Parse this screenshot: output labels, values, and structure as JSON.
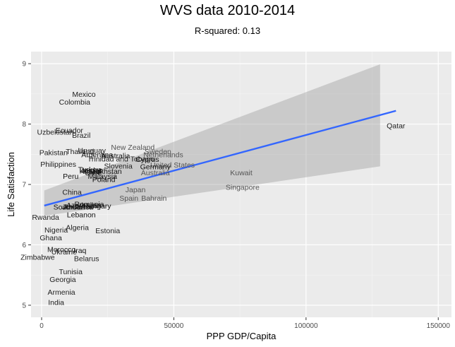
{
  "chart_data": {
    "type": "scatter",
    "title": "WVS data 2010-2014",
    "subtitle": "R-squared: 0.13",
    "xlabel": "PPP GDP/Capita",
    "ylabel": "Life Satisfaction",
    "xlim": [
      -4000,
      155000
    ],
    "ylim": [
      4.8,
      9.2
    ],
    "x_ticks": [
      0,
      50000,
      100000,
      150000
    ],
    "x_tick_labels": [
      "0",
      "50000",
      "100000",
      "150000"
    ],
    "y_ticks": [
      5,
      6,
      7,
      8,
      9
    ],
    "y_tick_labels": [
      "5",
      "6",
      "7",
      "8",
      "9"
    ],
    "grid": true,
    "background": "#ebebeb",
    "label_color_by_density": true,
    "regression": {
      "x": [
        1000,
        134000
      ],
      "y": [
        6.65,
        8.22
      ],
      "color": "#3366ff",
      "ci_band": {
        "x": [
          1000,
          128000
        ],
        "lower": [
          6.48,
          7.3
        ],
        "upper": [
          6.9,
          8.99
        ],
        "color": "#999999"
      }
    },
    "points": [
      {
        "label": "Mexico",
        "x": 16000,
        "y": 8.5
      },
      {
        "label": "Colombia",
        "x": 12500,
        "y": 8.37
      },
      {
        "label": "Ecuador",
        "x": 10500,
        "y": 7.9
      },
      {
        "label": "Uzbekistan",
        "x": 5200,
        "y": 7.87
      },
      {
        "label": "Brazil",
        "x": 15000,
        "y": 7.82
      },
      {
        "label": "Qatar",
        "x": 134000,
        "y": 7.98
      },
      {
        "label": "New Zealand",
        "x": 34500,
        "y": 7.62
      },
      {
        "label": "Sweden",
        "x": 44000,
        "y": 7.55
      },
      {
        "label": "Netherlands",
        "x": 46000,
        "y": 7.5
      },
      {
        "label": "Thailand",
        "x": 14500,
        "y": 7.55
      },
      {
        "label": "Uruguay",
        "x": 19000,
        "y": 7.57
      },
      {
        "label": "Pakistan",
        "x": 4500,
        "y": 7.53
      },
      {
        "label": "Argentina",
        "x": 21000,
        "y": 7.5
      },
      {
        "label": "Australia",
        "x": 28000,
        "y": 7.48
      },
      {
        "label": "Trinidad and Tobago",
        "x": 30000,
        "y": 7.43
      },
      {
        "label": "Cyprus",
        "x": 40000,
        "y": 7.42
      },
      {
        "label": "United States",
        "x": 49500,
        "y": 7.33
      },
      {
        "label": "Germany",
        "x": 43000,
        "y": 7.3
      },
      {
        "label": "Slovenia",
        "x": 29000,
        "y": 7.31
      },
      {
        "label": "Philippines",
        "x": 6300,
        "y": 7.34
      },
      {
        "label": "Turkey",
        "x": 18000,
        "y": 7.25
      },
      {
        "label": "Jordan",
        "x": 19000,
        "y": 7.24
      },
      {
        "label": "Kuwait",
        "x": 18500,
        "y": 7.23
      },
      {
        "label": "Kazakhstan",
        "x": 23000,
        "y": 7.22
      },
      {
        "label": "Chile",
        "x": 19500,
        "y": 7.2
      },
      {
        "label": "Australia",
        "x": 43000,
        "y": 7.2
      },
      {
        "label": "Kuwait",
        "x": 75500,
        "y": 7.2
      },
      {
        "label": "Peru",
        "x": 11000,
        "y": 7.14
      },
      {
        "label": "Malaysia",
        "x": 23000,
        "y": 7.14
      },
      {
        "label": "Poland",
        "x": 23500,
        "y": 7.09
      },
      {
        "label": "Singapore",
        "x": 76000,
        "y": 6.96
      },
      {
        "label": "China",
        "x": 11500,
        "y": 6.88
      },
      {
        "label": "Japan",
        "x": 35500,
        "y": 6.92
      },
      {
        "label": "Spain",
        "x": 33000,
        "y": 6.78
      },
      {
        "label": "Bahrain",
        "x": 42500,
        "y": 6.78
      },
      {
        "label": "Romania",
        "x": 18000,
        "y": 6.68
      },
      {
        "label": "Azerbaijan",
        "x": 16000,
        "y": 6.66
      },
      {
        "label": "Armenia",
        "x": 13500,
        "y": 6.64
      },
      {
        "label": "South Africa",
        "x": 12000,
        "y": 6.63
      },
      {
        "label": "Hungary",
        "x": 21000,
        "y": 6.65
      },
      {
        "label": "Jordan",
        "x": 12000,
        "y": 6.63
      },
      {
        "label": "Lebanon",
        "x": 15000,
        "y": 6.5
      },
      {
        "label": "Rwanda",
        "x": 1500,
        "y": 6.46
      },
      {
        "label": "Algeria",
        "x": 13500,
        "y": 6.29
      },
      {
        "label": "Nigeria",
        "x": 5500,
        "y": 6.25
      },
      {
        "label": "Estonia",
        "x": 25000,
        "y": 6.24
      },
      {
        "label": "Ghana",
        "x": 3500,
        "y": 6.12
      },
      {
        "label": "Morocco",
        "x": 7500,
        "y": 5.93
      },
      {
        "label": "Ukraine",
        "x": 8500,
        "y": 5.89
      },
      {
        "label": "Iraq",
        "x": 14500,
        "y": 5.91
      },
      {
        "label": "Zimbabwe",
        "x": -1500,
        "y": 5.8
      },
      {
        "label": "Belarus",
        "x": 17000,
        "y": 5.78
      },
      {
        "label": "Tunisia",
        "x": 11000,
        "y": 5.56
      },
      {
        "label": "Georgia",
        "x": 8000,
        "y": 5.43
      },
      {
        "label": "Armenia",
        "x": 7500,
        "y": 5.22
      },
      {
        "label": "India",
        "x": 5500,
        "y": 5.05
      }
    ]
  }
}
